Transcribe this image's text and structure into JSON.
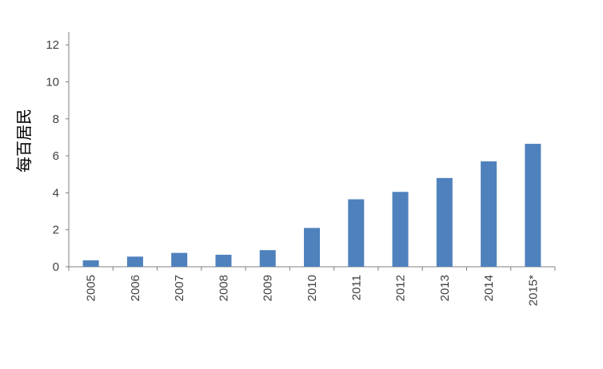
{
  "chart_data": {
    "type": "bar",
    "title": "",
    "xlabel": "",
    "ylabel": "每百居民",
    "categories": [
      "2005",
      "2006",
      "2007",
      "2008",
      "2009",
      "2010",
      "2011",
      "2012",
      "2013",
      "2014",
      "2015*"
    ],
    "values": [
      0.35,
      0.55,
      0.75,
      0.65,
      0.9,
      2.1,
      3.65,
      4.05,
      4.8,
      5.7,
      6.65
    ],
    "ylim": [
      0,
      12.7
    ],
    "yticks": [
      "0",
      "2",
      "4",
      "6",
      "8",
      "10",
      "12"
    ],
    "grid": false,
    "legend": "none",
    "colors": {
      "bar": "#4F81BD",
      "axis": "#808080",
      "text": "#404040"
    }
  }
}
